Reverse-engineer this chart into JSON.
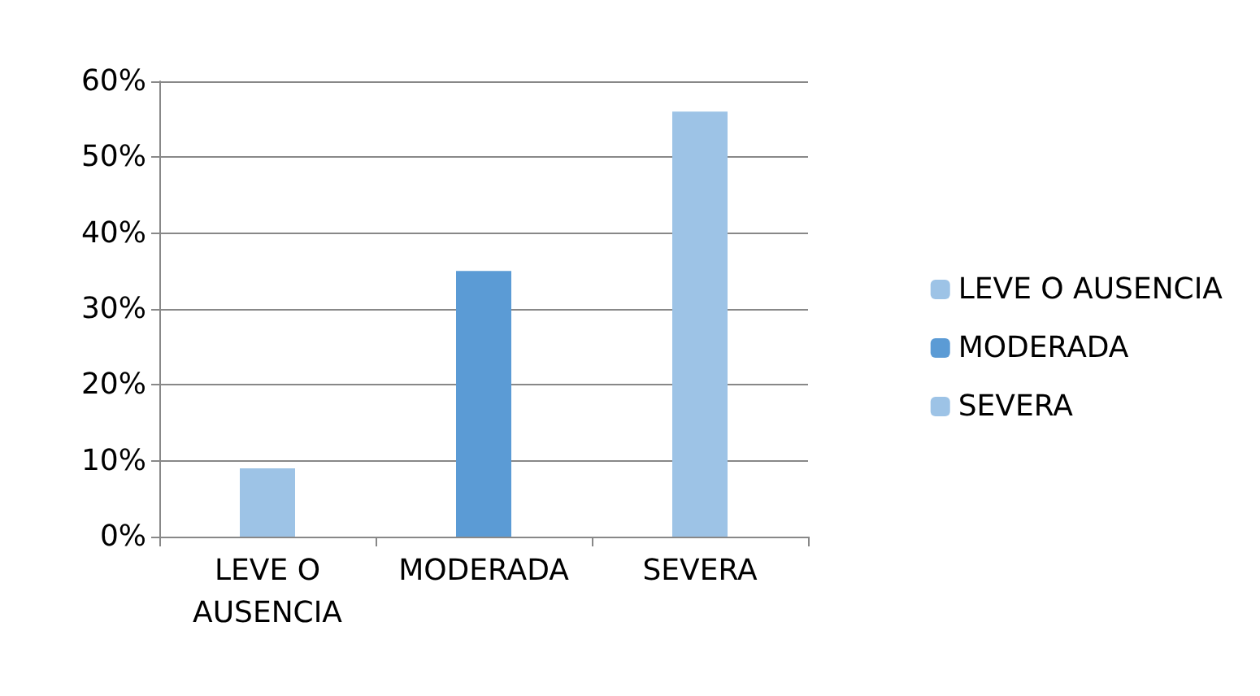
{
  "chart_data": {
    "type": "bar",
    "categories": [
      "LEVE O\nAUSENCIA",
      "MODERADA",
      "SEVERA"
    ],
    "series": [
      {
        "name": "LEVE O AUSENCIA",
        "color": "#9dc3e6",
        "values": [
          9,
          null,
          null
        ]
      },
      {
        "name": "MODERADA",
        "color": "#5b9bd5",
        "values": [
          null,
          35,
          null
        ]
      },
      {
        "name": "SEVERA",
        "color": "#9dc3e6",
        "values": [
          null,
          null,
          56
        ]
      }
    ],
    "ylim": [
      0,
      60
    ],
    "yticks": [
      {
        "value": 0,
        "label": "0%"
      },
      {
        "value": 10,
        "label": "10%"
      },
      {
        "value": 20,
        "label": "20%"
      },
      {
        "value": 30,
        "label": "30%"
      },
      {
        "value": 40,
        "label": "40%"
      },
      {
        "value": 50,
        "label": "50%"
      },
      {
        "value": 60,
        "label": "60%"
      }
    ],
    "grid": "y",
    "legend": "right"
  }
}
